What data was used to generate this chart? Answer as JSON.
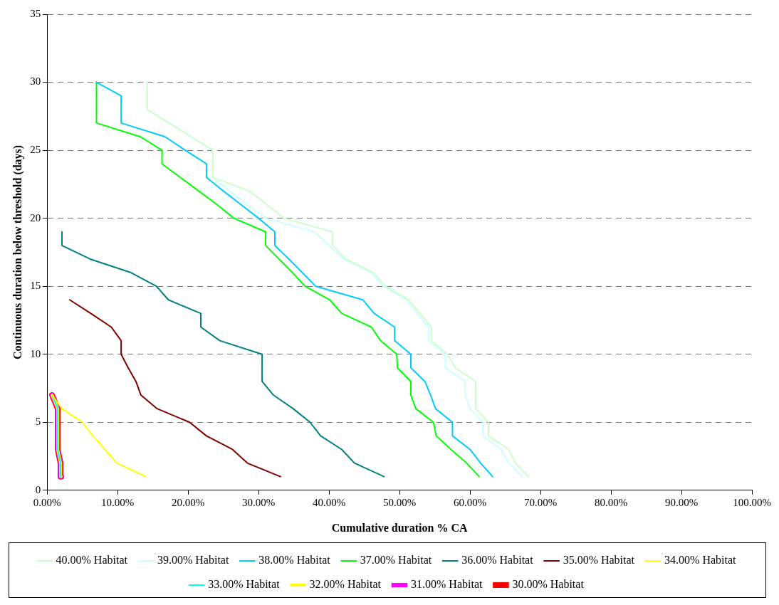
{
  "chart_data": {
    "type": "line",
    "xlabel": "Cumulative duration % CA",
    "ylabel": "Continuous duration below threshold (days)",
    "xlim": [
      0,
      100
    ],
    "xticks": [
      {
        "value": 0,
        "label": "0.00%"
      },
      {
        "value": 10,
        "label": "10.00%"
      },
      {
        "value": 20,
        "label": "20.00%"
      },
      {
        "value": 30,
        "label": "30.00%"
      },
      {
        "value": 40,
        "label": "40.00%"
      },
      {
        "value": 50,
        "label": "50.00%"
      },
      {
        "value": 60,
        "label": "60.00%"
      },
      {
        "value": 70,
        "label": "70.00%"
      },
      {
        "value": 80,
        "label": "80.00%"
      },
      {
        "value": 90,
        "label": "90.00%"
      },
      {
        "value": 100,
        "label": "100.00%"
      }
    ],
    "ylim": [
      0,
      35
    ],
    "yticks": [
      0,
      5,
      10,
      15,
      20,
      25,
      30,
      35
    ],
    "grid": "y",
    "legend": "bottom",
    "marker": "none",
    "series": [
      {
        "name": "30.00% Habitat",
        "color": "#ff0000",
        "x": [
          2.0,
          1.9,
          1.5,
          1.5,
          0.7
        ],
        "values": [
          1,
          2,
          3,
          6,
          7
        ]
      },
      {
        "name": "31.00% Habitat",
        "color": "#ff00ff",
        "x": [
          2.0,
          1.9,
          1.5,
          1.5,
          0.7
        ],
        "values": [
          1,
          2,
          3,
          6,
          7
        ]
      },
      {
        "name": "32.00% Habitat",
        "color": "#ffff00",
        "x": [
          2.0,
          1.9,
          1.5,
          1.5,
          0.7
        ],
        "values": [
          1,
          2,
          3,
          6,
          7
        ]
      },
      {
        "name": "33.00% Habitat",
        "color": "#00ffff",
        "x": [
          2.0,
          1.9,
          1.5,
          1.5,
          0.7
        ],
        "values": [
          1,
          2,
          3,
          6,
          7
        ]
      },
      {
        "name": "34.00% Habitat",
        "color": "#ffff00",
        "x": [
          14.0,
          9.9,
          8.2,
          6.5,
          5.0,
          2.1,
          0.7
        ],
        "values": [
          1,
          2,
          3,
          4,
          5,
          6,
          7
        ]
      },
      {
        "name": "35.00% Habitat",
        "color": "#800000",
        "x": [
          33.1,
          28.4,
          26.3,
          22.6,
          20.2,
          15.6,
          13.3,
          12.6,
          11.5,
          10.5,
          10.5,
          9.1,
          6.2,
          3.2
        ],
        "values": [
          1,
          2,
          3,
          4,
          5,
          6,
          7,
          8,
          9,
          10,
          11,
          12,
          13,
          14
        ]
      },
      {
        "name": "36.00% Habitat",
        "color": "#008080",
        "x": [
          47.8,
          43.6,
          41.8,
          38.8,
          37.3,
          34.9,
          32.1,
          30.5,
          30.5,
          24.5,
          21.8,
          21.8,
          17.2,
          15.5,
          11.9,
          6.1,
          2.1,
          2.1
        ],
        "values": [
          1,
          2,
          3,
          4,
          5,
          6,
          7,
          8,
          10,
          11,
          12,
          13,
          14,
          15,
          16,
          17,
          18,
          19
        ]
      },
      {
        "name": "37.00% Habitat",
        "color": "#00ff00",
        "x": [
          61.3,
          59.5,
          57.3,
          55.2,
          54.8,
          52.3,
          51.6,
          51.6,
          49.7,
          49.6,
          47.3,
          46.0,
          41.8,
          40.1,
          36.6,
          34.8,
          32.9,
          31.0,
          31.0,
          26.5,
          24.1,
          21.5,
          18.9,
          16.3,
          16.3,
          13.2,
          7.0,
          7.0
        ],
        "values": [
          1,
          2,
          3,
          4,
          5,
          6,
          7,
          8,
          9,
          10,
          11,
          12,
          13,
          14,
          15,
          16,
          17,
          18,
          19,
          20,
          21,
          22,
          23,
          24,
          25,
          26,
          27,
          30
        ]
      },
      {
        "name": "38.00% Habitat",
        "color": "#00ccff",
        "x": [
          63.2,
          61.5,
          60.0,
          57.5,
          57.5,
          55.1,
          54.4,
          53.6,
          51.6,
          51.6,
          49.3,
          49.3,
          46.4,
          44.8,
          38.1,
          36.2,
          34.3,
          32.3,
          32.3,
          30.0,
          27.5,
          25.0,
          22.6,
          22.6,
          19.6,
          16.7,
          10.5,
          10.5,
          7.0
        ],
        "values": [
          1,
          2,
          3,
          4,
          5,
          6,
          7,
          8,
          9,
          10,
          11,
          12,
          13,
          14,
          15,
          16,
          17,
          18,
          19,
          20,
          21,
          22,
          23,
          24,
          25,
          26,
          27,
          29,
          30
        ]
      },
      {
        "name": "39.00% Habitat",
        "color": "#ccffff",
        "x": [
          67.4,
          65.5,
          64.4,
          61.8,
          61.8,
          60.0,
          59.3,
          59.3,
          56.5,
          56.5,
          54.1,
          54.1,
          52.5,
          51.0,
          47.7,
          46.0,
          42.1,
          40.0,
          37.9,
          31.0,
          28.4,
          25.9,
          23.5,
          23.5,
          20.4,
          17.3,
          14.2,
          14.2
        ],
        "values": [
          1,
          2,
          3,
          4,
          5,
          6,
          7,
          8,
          9,
          10,
          11,
          12,
          13,
          14,
          15,
          16,
          17,
          18,
          19,
          20,
          21,
          22,
          23,
          25,
          26,
          27,
          28,
          30
        ]
      },
      {
        "name": "40.00% Habitat",
        "color": "#ccffcc",
        "x": [
          68.3,
          66.4,
          65.5,
          62.6,
          62.6,
          60.8,
          60.8,
          57.9,
          56.8,
          54.5,
          54.5,
          52.9,
          51.3,
          48.0,
          46.3,
          42.4,
          40.5,
          40.5,
          33.6,
          31.2,
          28.7,
          23.5,
          23.5,
          20.4,
          17.3,
          14.2,
          14.2
        ],
        "values": [
          1,
          2,
          3,
          4,
          5,
          6,
          8,
          9,
          10,
          11,
          12,
          13,
          14,
          15,
          16,
          17,
          18,
          19,
          20,
          21,
          22,
          23,
          25,
          26,
          27,
          28,
          30
        ]
      }
    ]
  }
}
